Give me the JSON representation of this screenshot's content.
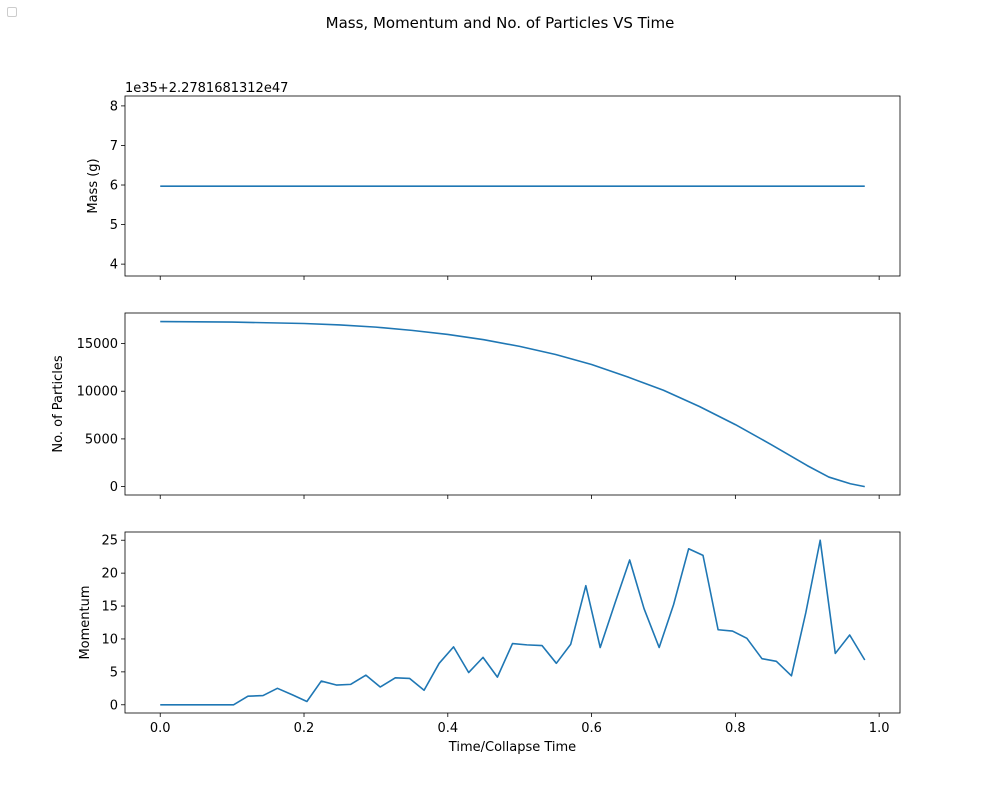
{
  "figure_title": "Mass, Momentum and No. of Particles VS Time",
  "colors": {
    "line": "#1f77b4",
    "axis": "#000000",
    "background": "#ffffff"
  },
  "chart_data": [
    {
      "type": "line",
      "ylabel": "Mass (g)",
      "xlabel": "",
      "offset_label": "1e35+2.2781681312e47",
      "xlim": [
        -0.049,
        1.029
      ],
      "ylim": [
        3.7,
        8.25
      ],
      "xticks": [
        0.0,
        0.2,
        0.4,
        0.6,
        0.8,
        1.0
      ],
      "xtick_labels_visible": false,
      "yticks": [
        4,
        5,
        6,
        7,
        8
      ],
      "ytick_labels": [
        "4",
        "5",
        "6",
        "7",
        "8"
      ],
      "series": [
        {
          "x": [
            0.0,
            0.98
          ],
          "y": [
            5.97,
            5.97
          ]
        }
      ]
    },
    {
      "type": "line",
      "ylabel": "No. of Particles",
      "xlabel": "",
      "xlim": [
        -0.049,
        1.029
      ],
      "ylim": [
        -880,
        18200
      ],
      "xticks": [
        0.0,
        0.2,
        0.4,
        0.6,
        0.8,
        1.0
      ],
      "xtick_labels_visible": false,
      "yticks": [
        0,
        5000,
        10000,
        15000
      ],
      "ytick_labels": [
        "0",
        "5000",
        "10000",
        "15000"
      ],
      "series": [
        {
          "x": [
            0.0,
            0.1,
            0.2,
            0.25,
            0.3,
            0.35,
            0.4,
            0.45,
            0.5,
            0.55,
            0.6,
            0.65,
            0.7,
            0.75,
            0.8,
            0.85,
            0.9,
            0.93,
            0.96,
            0.98
          ],
          "y": [
            17300,
            17250,
            17100,
            16950,
            16720,
            16380,
            15950,
            15400,
            14700,
            13850,
            12800,
            11500,
            10100,
            8400,
            6500,
            4400,
            2200,
            1000,
            300,
            0
          ]
        }
      ]
    },
    {
      "type": "line",
      "ylabel": "Momentum",
      "xlabel": "Time/Collapse Time",
      "xlim": [
        -0.049,
        1.029
      ],
      "ylim": [
        -1.25,
        26.25
      ],
      "xticks": [
        0.0,
        0.2,
        0.4,
        0.6,
        0.8,
        1.0
      ],
      "xtick_labels_visible": true,
      "xtick_labels": [
        "0.0",
        "0.2",
        "0.4",
        "0.6",
        "0.8",
        "1.0"
      ],
      "yticks": [
        0,
        5,
        10,
        15,
        20,
        25
      ],
      "ytick_labels": [
        "0",
        "5",
        "10",
        "15",
        "20",
        "25"
      ],
      "series": [
        {
          "x": [
            0.0,
            0.02,
            0.041,
            0.061,
            0.082,
            0.102,
            0.122,
            0.143,
            0.163,
            0.184,
            0.204,
            0.224,
            0.245,
            0.265,
            0.286,
            0.306,
            0.327,
            0.347,
            0.367,
            0.388,
            0.408,
            0.429,
            0.449,
            0.469,
            0.49,
            0.51,
            0.531,
            0.551,
            0.571,
            0.592,
            0.612,
            0.633,
            0.653,
            0.673,
            0.694,
            0.714,
            0.735,
            0.755,
            0.776,
            0.796,
            0.816,
            0.837,
            0.857,
            0.878,
            0.898,
            0.918,
            0.939,
            0.959,
            0.98
          ],
          "y": [
            0,
            0,
            0,
            0,
            0,
            0,
            1.3,
            1.4,
            2.5,
            1.5,
            0.5,
            3.6,
            3.0,
            3.1,
            4.5,
            2.7,
            4.1,
            4.0,
            2.2,
            6.3,
            8.8,
            4.9,
            7.2,
            4.2,
            9.3,
            9.1,
            9.0,
            6.3,
            9.2,
            18.1,
            8.7,
            15.6,
            22.0,
            14.6,
            8.7,
            15.2,
            23.7,
            22.7,
            11.4,
            11.2,
            10.1,
            7.0,
            6.6,
            4.4,
            14.0,
            25.0,
            7.8,
            10.6,
            6.8
          ]
        }
      ]
    }
  ]
}
